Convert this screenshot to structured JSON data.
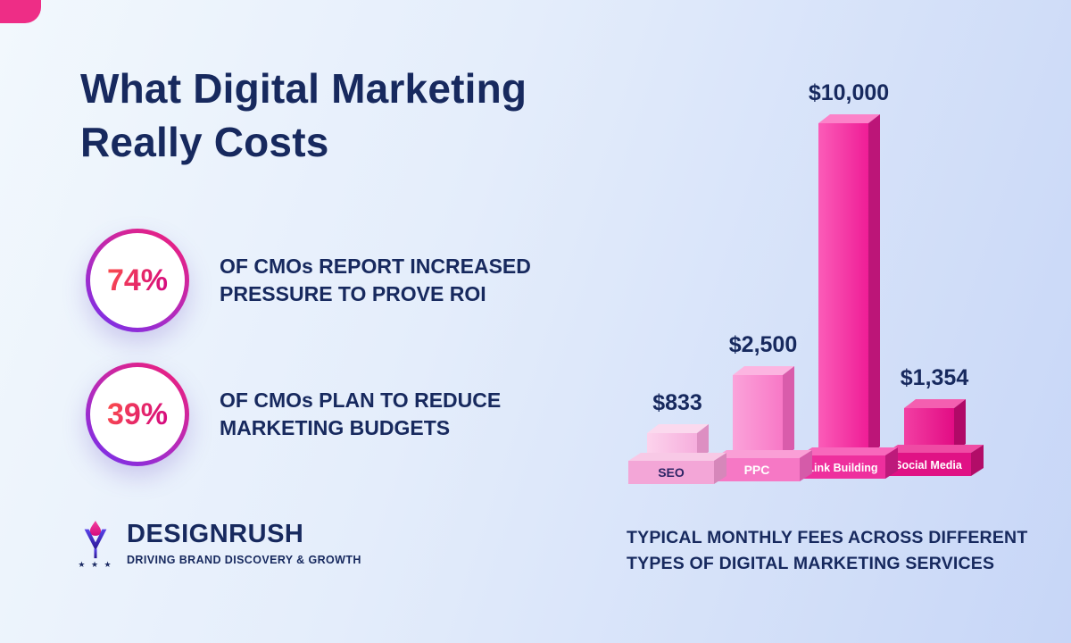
{
  "page": {
    "title_line1": "What Digital Marketing",
    "title_line2": "Really Costs"
  },
  "stats": [
    {
      "value": "74%",
      "label": "OF CMOs REPORT INCREASED PRESSURE TO PROVE ROI"
    },
    {
      "value": "39%",
      "label": "OF CMOs PLAN TO REDUCE MARKETING BUDGETS"
    }
  ],
  "logo": {
    "brand": "DESIGNRUSH",
    "tagline": "DRIVING BRAND DISCOVERY & GROWTH",
    "icon": "torch-icon",
    "stars": "★ ★ ★"
  },
  "chart_data": {
    "type": "bar",
    "categories": [
      "SEO",
      "PPC",
      "Link Building",
      "Social Media"
    ],
    "values": [
      833,
      2500,
      10000,
      1354
    ],
    "value_labels": [
      "$833",
      "$2,500",
      "$10,000",
      "$1,354"
    ],
    "ylim": [
      0,
      10000
    ],
    "grid": false,
    "legend_position": "none",
    "caption": "TYPICAL MONTHLY FEES ACROSS DIFFERENT TYPES OF DIGITAL MARKETING SERVICES",
    "bars": [
      {
        "front_light": "#fcd3ec",
        "front": "#f6aedd",
        "side": "#dd8fc2",
        "top": "#fbd9ee",
        "pedestal_front": "#f3a6d7",
        "pedestal_side": "#d687ba",
        "pedestal_top": "#f8c9e6",
        "label_color": "#2e2566"
      },
      {
        "front_light": "#fba3da",
        "front": "#f878c6",
        "side": "#d95cab",
        "top": "#fcb5e1",
        "pedestal_front": "#f678c5",
        "pedestal_side": "#d55ba9",
        "pedestal_top": "#fa9fd6",
        "label_color": "#ffffff"
      },
      {
        "front_light": "#fb5cb8",
        "front": "#ef1d96",
        "side": "#bc1578",
        "top": "#fc82c9",
        "pedestal_front": "#ee2f9d",
        "pedestal_side": "#bd1a7b",
        "pedestal_top": "#f868bc",
        "label_color": "#ffffff"
      },
      {
        "front_light": "#f23fa3",
        "front": "#e20c84",
        "side": "#b00967",
        "top": "#f45fb0",
        "pedestal_front": "#e01285",
        "pedestal_side": "#b20d68",
        "pedestal_top": "#ef4ba4",
        "label_color": "#ffffff"
      }
    ]
  },
  "colors": {
    "background_start": "#f2f8fd",
    "background_end": "#c7d6f7",
    "title_navy": "#17295e",
    "accent_pink": "#ee2d86",
    "ring_gradient_start": "#ef1f7b",
    "ring_gradient_end": "#6f2ff0"
  }
}
